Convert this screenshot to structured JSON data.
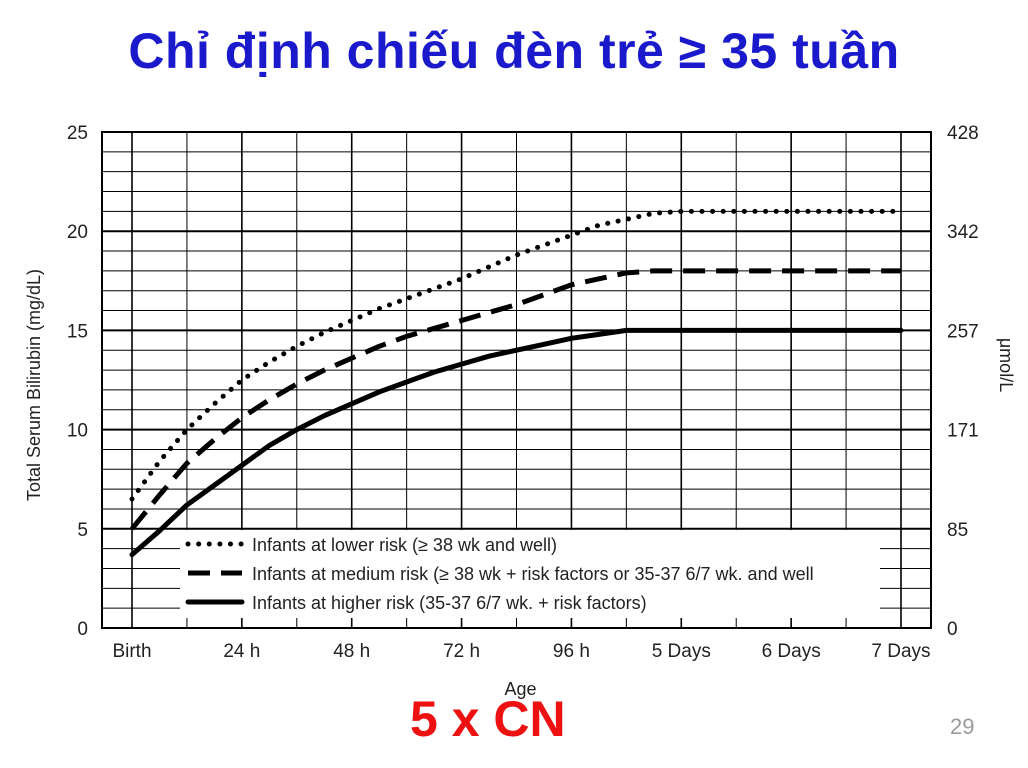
{
  "slide": {
    "title": "Chỉ định chiếu đèn trẻ ≥ 35 tuần",
    "footer_note": "5 x CN",
    "page_number": "29"
  },
  "colors": {
    "title": "#1a1acc",
    "footer_note": "#ee1111",
    "page_number": "#9a9a9a",
    "lines": "#000000"
  },
  "chart_data": {
    "type": "line",
    "title": "",
    "xlabel": "Age",
    "ylabel": "Total Serum Bilirubin (mg/dL)",
    "y2label": "μmol/L",
    "xlim": [
      0,
      168
    ],
    "ylim": [
      0,
      25
    ],
    "x_ticks": [
      {
        "value": 0,
        "label": "Birth"
      },
      {
        "value": 24,
        "label": "24 h"
      },
      {
        "value": 48,
        "label": "48 h"
      },
      {
        "value": 72,
        "label": "72 h"
      },
      {
        "value": 96,
        "label": "96 h"
      },
      {
        "value": 120,
        "label": "5 Days"
      },
      {
        "value": 144,
        "label": "6 Days"
      },
      {
        "value": 168,
        "label": "7 Days"
      }
    ],
    "y_ticks": [
      0,
      5,
      10,
      15,
      20,
      25
    ],
    "y2_ticks": [
      {
        "value": 0,
        "label": "0"
      },
      {
        "value": 5,
        "label": "85"
      },
      {
        "value": 10,
        "label": "171"
      },
      {
        "value": 15,
        "label": "257"
      },
      {
        "value": 20,
        "label": "342"
      },
      {
        "value": 25,
        "label": "428"
      }
    ],
    "grid": true,
    "legend_position": "bottom-left inside",
    "series": [
      {
        "name": "Infants at lower risk (≥ 38 wk and well)",
        "style": "dotted",
        "x": [
          0,
          6,
          12,
          18,
          24,
          30,
          36,
          42,
          48,
          54,
          60,
          66,
          72,
          78,
          84,
          90,
          96,
          102,
          108,
          114,
          120,
          132,
          144,
          156,
          168
        ],
        "y": [
          6.5,
          8.4,
          10.0,
          11.3,
          12.5,
          13.4,
          14.2,
          14.9,
          15.5,
          16.1,
          16.6,
          17.1,
          17.6,
          18.2,
          18.8,
          19.3,
          19.8,
          20.3,
          20.6,
          20.9,
          21.0,
          21.0,
          21.0,
          21.0,
          21.0
        ]
      },
      {
        "name": "Infants at medium risk (≥ 38 wk + risk factors or 35-37 6/7 wk. and well",
        "style": "dashed",
        "x": [
          0,
          6,
          12,
          18,
          24,
          30,
          36,
          42,
          48,
          54,
          60,
          66,
          72,
          78,
          84,
          90,
          96,
          102,
          108,
          114,
          120,
          132,
          144,
          156,
          168
        ],
        "y": [
          5.0,
          6.7,
          8.3,
          9.5,
          10.6,
          11.5,
          12.3,
          13.0,
          13.6,
          14.2,
          14.7,
          15.1,
          15.5,
          15.9,
          16.3,
          16.8,
          17.3,
          17.6,
          17.9,
          18.0,
          18.0,
          18.0,
          18.0,
          18.0,
          18.0
        ]
      },
      {
        "name": "Infants at higher risk (35-37 6/7 wk. + risk factors)",
        "style": "solid",
        "x": [
          0,
          6,
          12,
          18,
          24,
          30,
          36,
          42,
          48,
          54,
          60,
          66,
          72,
          78,
          84,
          90,
          96,
          102,
          108,
          114,
          120,
          132,
          144,
          156,
          168
        ],
        "y": [
          3.7,
          4.9,
          6.2,
          7.2,
          8.2,
          9.2,
          10.0,
          10.7,
          11.3,
          11.9,
          12.4,
          12.9,
          13.3,
          13.7,
          14.0,
          14.3,
          14.6,
          14.8,
          15.0,
          15.0,
          15.0,
          15.0,
          15.0,
          15.0,
          15.0
        ]
      }
    ]
  }
}
